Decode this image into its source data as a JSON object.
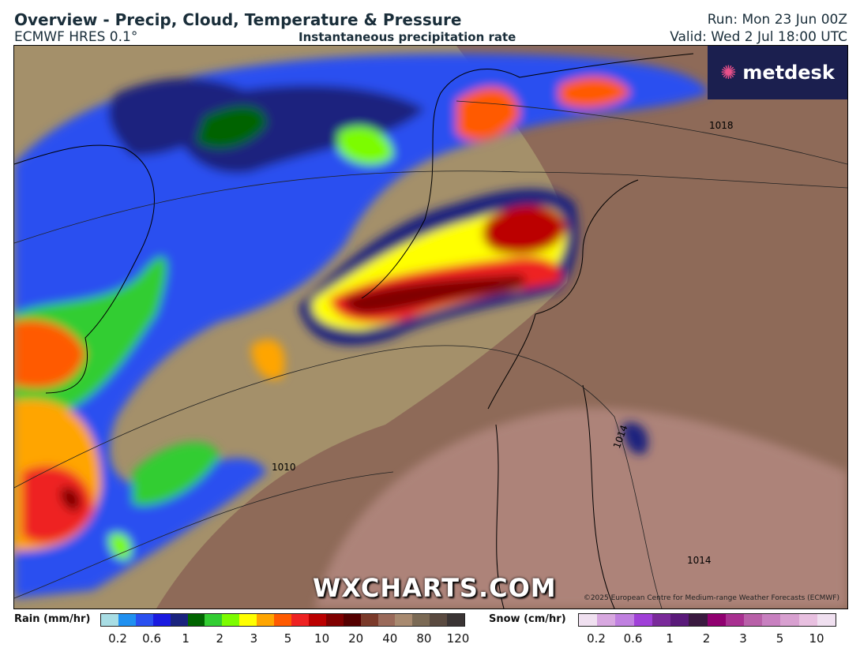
{
  "header": {
    "title": "Overview - Precip, Cloud, Temperature & Pressure",
    "model": "ECMWF HRES 0.1°",
    "subtitle": "Instantaneous precipitation rate",
    "run": "Run: Mon 23 Jun 00Z",
    "valid": "Valid: Wed 2 Jul 18:00 UTC"
  },
  "map": {
    "logo": "metdesk",
    "watermark": "WXCHARTS.COM",
    "copyright": "©2025 European Centre for Medium-range Weather Forecasts (ECMWF)",
    "isobar_labels": [
      "1018",
      "1014",
      "1010",
      "1014"
    ]
  },
  "legend": {
    "rain": {
      "label": "Rain (mm/hr)",
      "ticks": [
        "0.2",
        "0.6",
        "1",
        "2",
        "3",
        "5",
        "10",
        "20",
        "40",
        "80",
        "120"
      ],
      "colors": [
        "#a8dde4",
        "#2090f0",
        "#2a50f0",
        "#1a1ae0",
        "#1a237e",
        "#006400",
        "#32cd32",
        "#7cfc00",
        "#ffff00",
        "#ffa500",
        "#ff5a00",
        "#ee2222",
        "#bb0000",
        "#800000",
        "#550000",
        "#7b3a2a",
        "#9a6a5a",
        "#a88a70",
        "#7b6a55",
        "#5a4a40",
        "#3a3434"
      ]
    },
    "snow": {
      "label": "Snow (cm/hr)",
      "ticks": [
        "0.2",
        "0.6",
        "1",
        "2",
        "3",
        "5",
        "10"
      ],
      "colors": [
        "#f0e0f0",
        "#d8a8e0",
        "#c080e0",
        "#a040d8",
        "#7a2a9a",
        "#5a1a7a",
        "#3a1a40",
        "#900070",
        "#a83090",
        "#b860a8",
        "#c880c0",
        "#d8a0d0",
        "#e8c0e0",
        "#f0e0f0"
      ]
    }
  }
}
